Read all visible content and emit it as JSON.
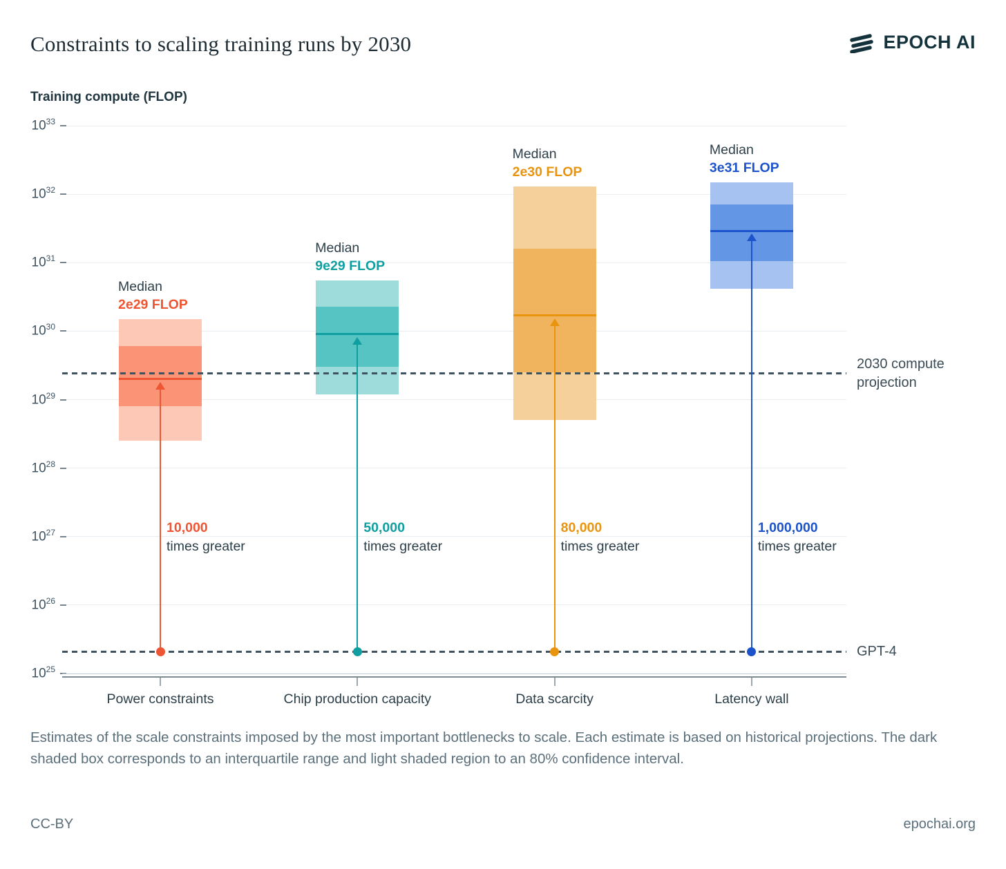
{
  "header": {
    "title": "Constraints to scaling training runs by 2030",
    "brand": "EPOCH AI"
  },
  "chart_data": {
    "type": "box",
    "title": "Constraints to scaling training runs by 2030",
    "ylabel": "Training compute (FLOP)",
    "y_axis": {
      "scale": "log10",
      "min_exp": 25,
      "max_exp": 33,
      "tick_mantissa": "10"
    },
    "grid": true,
    "median_word": "Median",
    "multiplier_suffix": "times greater",
    "reference_lines": [
      {
        "id": "projection",
        "value": 2.4e+29,
        "label_line1": "2030 compute projection",
        "label_lines": [
          "2030 compute",
          "projection"
        ],
        "color": "#3e5260"
      },
      {
        "id": "gpt4",
        "value": 2.1e+25,
        "label_line1": "GPT-4",
        "label_lines": [
          "GPT-4"
        ],
        "color": "#3e5260"
      }
    ],
    "categories": [
      {
        "label": "Power constraints",
        "median": 2e+29,
        "median_label": "2e29 FLOP",
        "iqr": [
          8e+28,
          6e+29
        ],
        "ci80": [
          2.5e+28,
          1.5e+30
        ],
        "multiplier": "10,000",
        "colors": {
          "light": "#fdc9b6",
          "dark": "#fb9377",
          "accent": "#ee5532"
        }
      },
      {
        "label": "Chip production capacity",
        "median": 9e+29,
        "median_label": "9e29 FLOP",
        "iqr": [
          3e+29,
          2.3e+30
        ],
        "ci80": [
          1.2e+29,
          5.5e+30
        ],
        "multiplier": "50,000",
        "colors": {
          "light": "#9edcdc",
          "dark": "#55c4c3",
          "accent": "#0f9fa0"
        }
      },
      {
        "label": "Data scarcity",
        "median": 1.7e+30,
        "median_label": "2e30 FLOP",
        "iqr": [
          2.5e+29,
          1.6e+31
        ],
        "ci80": [
          5e+28,
          1.3e+32
        ],
        "multiplier": "80,000",
        "colors": {
          "light": "#f6d09a",
          "dark": "#f0b45e",
          "accent": "#e8940f"
        }
      },
      {
        "label": "Latency wall",
        "median": 2.9e+31,
        "median_label": "3e31 FLOP",
        "iqr": [
          1.05e+31,
          7e+31
        ],
        "ci80": [
          4.2e+30,
          1.5e+32
        ],
        "multiplier": "1,000,000",
        "colors": {
          "light": "#a5c2f0",
          "dark": "#6397e5",
          "accent": "#1c53cb"
        }
      }
    ],
    "annotation_note": "dark box = interquartile range, light region = 80% confidence interval"
  },
  "footnote": "Estimates of the scale constraints imposed by the most important bottlenecks to scale. Each estimate is based on historical projections. The dark shaded box corresponds to an interquartile range and light shaded region to an 80% confidence interval.",
  "footer": {
    "license": "CC-BY",
    "site": "epochai.org"
  }
}
